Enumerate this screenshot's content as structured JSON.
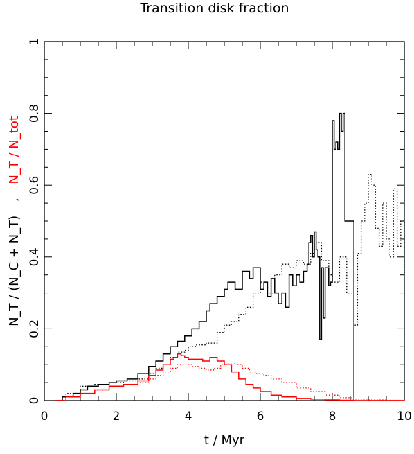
{
  "chart_data": {
    "type": "line",
    "title": "Transition disk fraction",
    "xlabel": "t / Myr",
    "ylabel": {
      "black_part": "N_T / (N_C + N_T)",
      "separator": ",",
      "red_part": "N_T / N_tot"
    },
    "xlim": [
      0,
      10
    ],
    "ylim": [
      0,
      1
    ],
    "x_ticks": [
      "0",
      "2",
      "4",
      "6",
      "8",
      "10"
    ],
    "y_ticks": [
      "0",
      "0.2",
      "0.4",
      "0.6",
      "0.8",
      "1"
    ],
    "grid": false,
    "colors": {
      "black": "#000000",
      "red": "#ff0000"
    },
    "series": [
      {
        "color": "#000000",
        "style": "solid",
        "x": [
          0.3,
          0.5,
          0.8,
          1.0,
          1.2,
          1.5,
          1.8,
          2.0,
          2.3,
          2.6,
          2.9,
          3.1,
          3.3,
          3.5,
          3.7,
          3.9,
          4.1,
          4.3,
          4.5,
          4.6,
          4.8,
          5.0,
          5.1,
          5.3,
          5.5,
          5.7,
          5.8,
          6.0,
          6.1,
          6.2,
          6.3,
          6.4,
          6.5,
          6.6,
          6.7,
          6.8,
          6.9,
          7.0,
          7.1,
          7.2,
          7.3,
          7.35,
          7.4,
          7.45,
          7.5,
          7.55,
          7.6,
          7.65,
          7.7,
          7.75,
          7.8,
          7.9,
          7.95,
          8.0,
          8.05,
          8.1,
          8.15,
          8.2,
          8.25,
          8.3,
          8.35,
          8.45,
          8.55,
          8.6
        ],
        "y": [
          0.0,
          0.01,
          0.02,
          0.03,
          0.04,
          0.045,
          0.05,
          0.055,
          0.06,
          0.075,
          0.095,
          0.11,
          0.13,
          0.15,
          0.165,
          0.18,
          0.2,
          0.22,
          0.25,
          0.27,
          0.29,
          0.31,
          0.33,
          0.31,
          0.36,
          0.34,
          0.37,
          0.31,
          0.33,
          0.29,
          0.34,
          0.3,
          0.27,
          0.3,
          0.26,
          0.35,
          0.32,
          0.35,
          0.33,
          0.36,
          0.38,
          0.44,
          0.46,
          0.4,
          0.47,
          0.42,
          0.4,
          0.17,
          0.37,
          0.23,
          0.37,
          0.32,
          0.33,
          0.78,
          0.7,
          0.72,
          0.7,
          0.8,
          0.75,
          0.8,
          0.5,
          0.5,
          0.5,
          0.0
        ]
      },
      {
        "color": "#000000",
        "style": "dotted",
        "x": [
          0.3,
          0.6,
          1.0,
          1.4,
          1.8,
          2.2,
          2.6,
          2.9,
          3.1,
          3.3,
          3.5,
          3.7,
          3.9,
          4.0,
          4.2,
          4.5,
          4.8,
          5.0,
          5.2,
          5.4,
          5.6,
          5.8,
          6.0,
          6.2,
          6.4,
          6.6,
          6.8,
          7.0,
          7.2,
          7.4,
          7.5,
          7.7,
          7.9,
          8.0,
          8.2,
          8.4,
          8.6,
          8.7,
          8.8,
          8.9,
          9.0,
          9.1,
          9.2,
          9.3,
          9.4,
          9.5,
          9.6,
          9.7,
          9.8,
          9.9,
          10.0
        ],
        "y": [
          0.0,
          0.02,
          0.04,
          0.045,
          0.05,
          0.055,
          0.06,
          0.075,
          0.09,
          0.1,
          0.12,
          0.135,
          0.14,
          0.15,
          0.155,
          0.16,
          0.19,
          0.21,
          0.22,
          0.24,
          0.26,
          0.3,
          0.33,
          0.3,
          0.35,
          0.38,
          0.37,
          0.39,
          0.38,
          0.41,
          0.44,
          0.39,
          0.35,
          0.33,
          0.4,
          0.3,
          0.21,
          0.41,
          0.5,
          0.55,
          0.63,
          0.6,
          0.48,
          0.43,
          0.55,
          0.45,
          0.4,
          0.59,
          0.43,
          0.5,
          0.35
        ]
      },
      {
        "color": "#ff0000",
        "style": "solid",
        "x": [
          0.3,
          0.6,
          1.0,
          1.4,
          1.8,
          2.2,
          2.6,
          2.9,
          3.1,
          3.3,
          3.5,
          3.6,
          3.7,
          3.8,
          3.9,
          4.0,
          4.2,
          4.4,
          4.6,
          4.8,
          5.0,
          5.2,
          5.4,
          5.6,
          5.8,
          6.0,
          6.3,
          6.6,
          7.0,
          7.4,
          7.8,
          8.2,
          8.6,
          9.0,
          9.5,
          10.0
        ],
        "y": [
          0.0,
          0.01,
          0.02,
          0.03,
          0.04,
          0.045,
          0.055,
          0.07,
          0.085,
          0.1,
          0.115,
          0.12,
          0.13,
          0.125,
          0.12,
          0.115,
          0.115,
          0.11,
          0.12,
          0.11,
          0.1,
          0.08,
          0.06,
          0.045,
          0.035,
          0.025,
          0.015,
          0.01,
          0.006,
          0.004,
          0.002,
          0.001,
          0.0,
          0.0,
          0.0,
          0.0
        ]
      },
      {
        "color": "#ff0000",
        "style": "dotted",
        "x": [
          0.3,
          0.6,
          1.0,
          1.4,
          1.8,
          2.2,
          2.6,
          2.9,
          3.1,
          3.3,
          3.5,
          3.7,
          3.9,
          4.1,
          4.3,
          4.5,
          4.7,
          4.9,
          5.1,
          5.3,
          5.5,
          5.7,
          5.9,
          6.1,
          6.3,
          6.6,
          7.0,
          7.4,
          7.8,
          8.2,
          8.6,
          9.0,
          9.5,
          10.0
        ],
        "y": [
          0.0,
          0.01,
          0.02,
          0.03,
          0.04,
          0.045,
          0.05,
          0.06,
          0.07,
          0.08,
          0.09,
          0.1,
          0.1,
          0.095,
          0.09,
          0.085,
          0.09,
          0.1,
          0.105,
          0.1,
          0.09,
          0.08,
          0.075,
          0.07,
          0.06,
          0.05,
          0.035,
          0.025,
          0.015,
          0.008,
          0.004,
          0.002,
          0.001,
          0.0
        ]
      }
    ]
  }
}
